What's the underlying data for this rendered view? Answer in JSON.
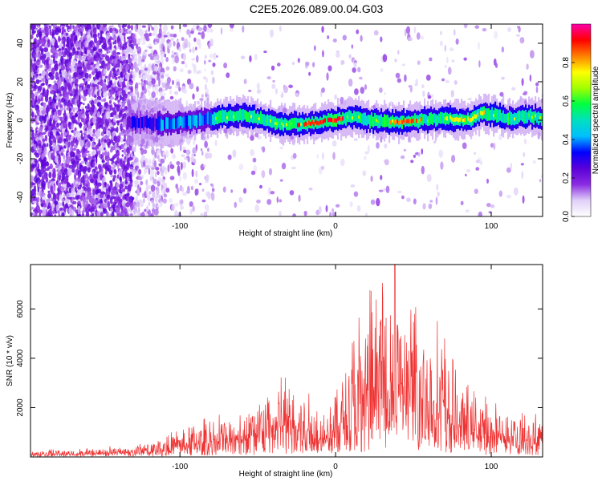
{
  "title": "C2E5.2026.089.00.04.G03",
  "chart_data": [
    {
      "type": "heatmap",
      "panel": "spectrogram",
      "xlabel": "Height of straight line (km)",
      "ylabel": "Frequency (Hz)",
      "xlim": [
        -196,
        133
      ],
      "ylim": [
        -50,
        50
      ],
      "xticks": [
        -100,
        0,
        100
      ],
      "yticks": [
        -40,
        -20,
        0,
        20,
        40
      ],
      "colorbar": {
        "label": "Normalized spectral amplitude",
        "range": [
          0.0,
          1.0
        ],
        "ticks": [
          "0.0",
          "0.2",
          "0.4",
          "0.6",
          "0.8"
        ],
        "tick_values": [
          0.0,
          0.2,
          0.4,
          0.6,
          0.8
        ],
        "colormap": [
          "#ffffff",
          "#e0d0f8",
          "#8a2be2",
          "#5a00d8",
          "#0000ff",
          "#00bfff",
          "#00e0c0",
          "#00ff40",
          "#a0ff00",
          "#ffff00",
          "#ff8000",
          "#ff0000",
          "#ff00aa"
        ]
      },
      "ridge_center_hz": [
        {
          "x": -130,
          "y": -1
        },
        {
          "x": -110,
          "y": -2
        },
        {
          "x": -90,
          "y": 0
        },
        {
          "x": -70,
          "y": 2
        },
        {
          "x": -60,
          "y": 3
        },
        {
          "x": -50,
          "y": 1
        },
        {
          "x": -35,
          "y": -2
        },
        {
          "x": -20,
          "y": -2
        },
        {
          "x": 0,
          "y": 0
        },
        {
          "x": 10,
          "y": 2
        },
        {
          "x": 20,
          "y": 0
        },
        {
          "x": 35,
          "y": -1
        },
        {
          "x": 55,
          "y": 0
        },
        {
          "x": 70,
          "y": 1
        },
        {
          "x": 85,
          "y": 0
        },
        {
          "x": 95,
          "y": 4
        },
        {
          "x": 110,
          "y": 1
        },
        {
          "x": 125,
          "y": 2
        },
        {
          "x": 133,
          "y": 1
        }
      ],
      "peak_segments": [
        {
          "x0": -25,
          "x1": 5,
          "amplitude": 0.95
        },
        {
          "x0": 35,
          "x1": 55,
          "amplitude": 0.9
        },
        {
          "x0": 70,
          "x1": 95,
          "amplitude": 0.8
        }
      ]
    },
    {
      "type": "line",
      "panel": "snr",
      "xlabel": "Height of straight line (km)",
      "ylabel": "SNR (10 * v/v)",
      "xlim": [
        -196,
        133
      ],
      "ylim": [
        0,
        7800
      ],
      "xticks": [
        -100,
        0,
        100
      ],
      "yticks": [
        2000,
        4000,
        6000
      ],
      "color": "#ee3333",
      "envelope": [
        {
          "x": -196,
          "y": 200
        },
        {
          "x": -160,
          "y": 250
        },
        {
          "x": -130,
          "y": 350
        },
        {
          "x": -110,
          "y": 650
        },
        {
          "x": -90,
          "y": 1000
        },
        {
          "x": -70,
          "y": 1300
        },
        {
          "x": -50,
          "y": 1800
        },
        {
          "x": -35,
          "y": 2400
        },
        {
          "x": -20,
          "y": 2100
        },
        {
          "x": -10,
          "y": 1400
        },
        {
          "x": 0,
          "y": 2000
        },
        {
          "x": 10,
          "y": 3600
        },
        {
          "x": 20,
          "y": 4600
        },
        {
          "x": 30,
          "y": 5200
        },
        {
          "x": 40,
          "y": 5000
        },
        {
          "x": 50,
          "y": 4400
        },
        {
          "x": 60,
          "y": 4100
        },
        {
          "x": 70,
          "y": 3600
        },
        {
          "x": 80,
          "y": 2200
        },
        {
          "x": 90,
          "y": 1900
        },
        {
          "x": 100,
          "y": 1600
        },
        {
          "x": 110,
          "y": 1500
        },
        {
          "x": 120,
          "y": 1400
        },
        {
          "x": 133,
          "y": 1300
        }
      ],
      "peak": {
        "x": 38,
        "y": 7800
      }
    }
  ]
}
